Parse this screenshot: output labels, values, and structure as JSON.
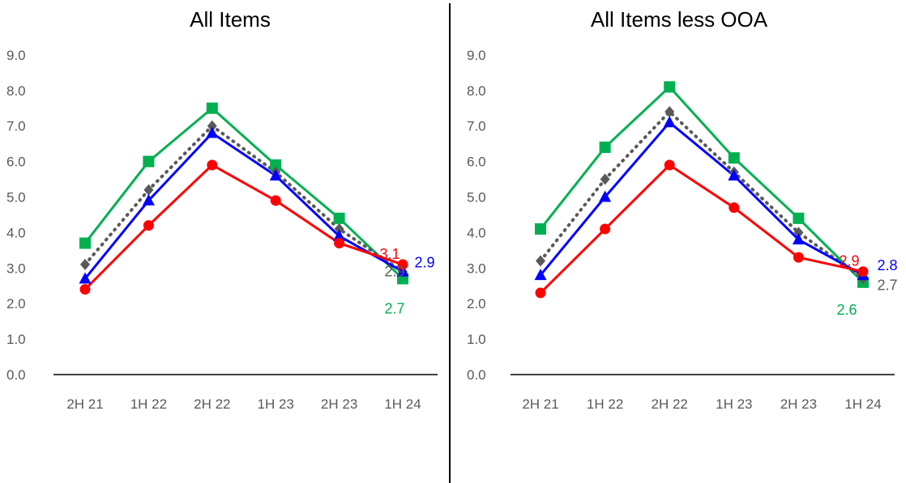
{
  "chart_data": [
    {
      "type": "line",
      "title": "All Items",
      "categories": [
        "2H 21",
        "1H 22",
        "2H 22",
        "1H 23",
        "2H 23",
        "1H 24"
      ],
      "y_ticks": [
        "0.0",
        "1.0",
        "2.0",
        "3.0",
        "4.0",
        "5.0",
        "6.0",
        "7.0",
        "8.0",
        "9.0"
      ],
      "ylim": [
        0,
        9
      ],
      "grid": false,
      "legend": "none",
      "series": [
        {
          "color": "#00b050",
          "marker": "square",
          "line": "solid",
          "values": [
            3.7,
            6.0,
            7.5,
            5.9,
            4.4,
            2.7
          ],
          "end_label": "2.7"
        },
        {
          "color": "#595959",
          "marker": "diamond",
          "line": "dotted",
          "values": [
            3.1,
            5.2,
            7.0,
            5.7,
            4.1,
            2.9
          ],
          "end_label": "2.9"
        },
        {
          "color": "#0000ff",
          "marker": "triangle",
          "line": "solid",
          "values": [
            2.7,
            4.9,
            6.8,
            5.6,
            3.9,
            2.9
          ],
          "end_label": "2.9"
        },
        {
          "color": "#ff0000",
          "marker": "circle",
          "line": "solid",
          "values": [
            2.4,
            4.2,
            5.9,
            4.9,
            3.7,
            3.1
          ],
          "end_label": "3.1"
        }
      ]
    },
    {
      "type": "line",
      "title": "All Items less OOA",
      "categories": [
        "2H 21",
        "1H 22",
        "2H 22",
        "1H 23",
        "2H 23",
        "1H 24"
      ],
      "y_ticks": [
        "0.0",
        "1.0",
        "2.0",
        "3.0",
        "4.0",
        "5.0",
        "6.0",
        "7.0",
        "8.0",
        "9.0"
      ],
      "ylim": [
        0,
        9
      ],
      "grid": false,
      "legend": "none",
      "series": [
        {
          "color": "#00b050",
          "marker": "square",
          "line": "solid",
          "values": [
            4.1,
            6.4,
            8.1,
            6.1,
            4.4,
            2.6
          ],
          "end_label": "2.6"
        },
        {
          "color": "#595959",
          "marker": "diamond",
          "line": "dotted",
          "values": [
            3.2,
            5.5,
            7.4,
            5.7,
            4.0,
            2.7
          ],
          "end_label": "2.7"
        },
        {
          "color": "#0000ff",
          "marker": "triangle",
          "line": "solid",
          "values": [
            2.8,
            5.0,
            7.1,
            5.6,
            3.8,
            2.8
          ],
          "end_label": "2.8"
        },
        {
          "color": "#ff0000",
          "marker": "circle",
          "line": "solid",
          "values": [
            2.3,
            4.1,
            5.9,
            4.7,
            3.3,
            2.9
          ],
          "end_label": "2.9"
        }
      ]
    }
  ]
}
